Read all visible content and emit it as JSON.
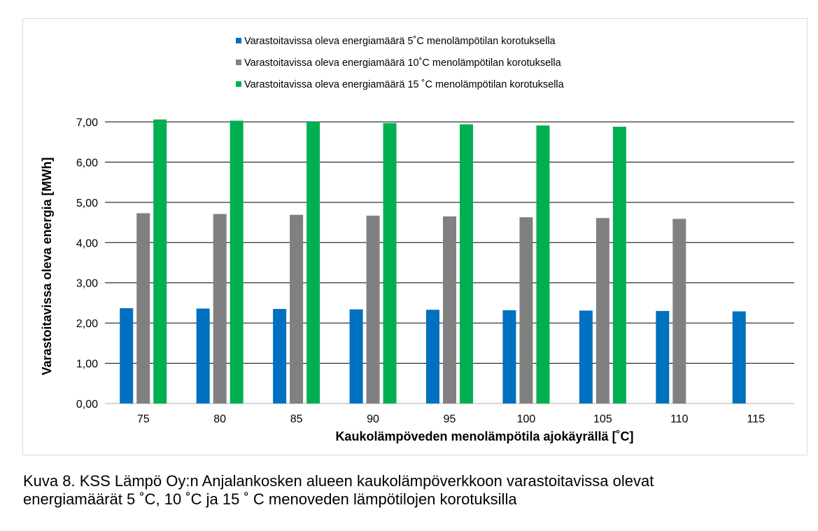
{
  "chart_data": {
    "type": "bar",
    "title": "",
    "xlabel": "Kaukolämpöveden menolämpötila ajokäyrällä [˚C]",
    "ylabel": "Varastoitavissa oleva energia [MWh]",
    "ylim": [
      0,
      7
    ],
    "yticks": [
      "0,00",
      "1,00",
      "2,00",
      "3,00",
      "4,00",
      "5,00",
      "6,00",
      "7,00"
    ],
    "grid": true,
    "legend_position": "top",
    "categories": [
      "75",
      "80",
      "85",
      "90",
      "95",
      "100",
      "105",
      "110",
      "115"
    ],
    "series": [
      {
        "name": "Varastoitavissa oleva energiamäärä 5˚C menolämpötilan korotuksella",
        "color": "#0070c0",
        "values": [
          2.37,
          2.36,
          2.35,
          2.34,
          2.33,
          2.32,
          2.31,
          2.3,
          2.29
        ]
      },
      {
        "name": "Varastoitavissa oleva energiamäärä 10˚C menolämpötilan korotuksella",
        "color": "#808080",
        "values": [
          4.73,
          4.71,
          4.69,
          4.67,
          4.65,
          4.63,
          4.61,
          4.59,
          null
        ]
      },
      {
        "name": "Varastoitavissa oleva energiamäärä 15 ˚C menolämpötilan korotuksella",
        "color": "#00b050",
        "values": [
          7.06,
          7.03,
          7.0,
          6.97,
          6.94,
          6.91,
          6.88,
          null,
          null
        ]
      }
    ]
  },
  "caption": {
    "line1": "Kuva 8. KSS Lämpö Oy:n Anjalankosken alueen kaukolämpöverkkoon varastoitavissa olevat",
    "line2": "energiamäärät 5 ˚C, 10 ˚C ja 15 ˚ C menoveden lämpötilojen korotuksilla"
  }
}
